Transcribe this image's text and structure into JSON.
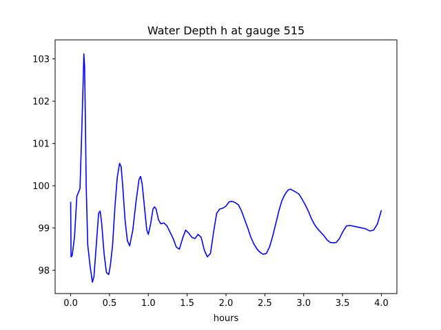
{
  "chart_data": {
    "type": "line",
    "title": "Water Depth h at gauge 515",
    "xlabel": "hours",
    "ylabel": "",
    "xlim": [
      -0.2,
      4.2
    ],
    "ylim": [
      97.45,
      103.45
    ],
    "grid": false,
    "x_ticks": [
      0.0,
      0.5,
      1.0,
      1.5,
      2.0,
      2.5,
      3.0,
      3.5,
      4.0
    ],
    "x_tick_labels": [
      "0.0",
      "0.5",
      "1.0",
      "1.5",
      "2.0",
      "2.5",
      "3.0",
      "3.5",
      "4.0"
    ],
    "y_ticks": [
      98,
      99,
      100,
      101,
      102,
      103
    ],
    "y_tick_labels": [
      "98",
      "99",
      "100",
      "101",
      "102",
      "103"
    ],
    "series": [
      {
        "color": "#0000ff",
        "x": [
          0.0,
          0.005,
          0.02,
          0.05,
          0.08,
          0.12,
          0.14,
          0.16,
          0.17,
          0.18,
          0.19,
          0.2,
          0.22,
          0.25,
          0.28,
          0.3,
          0.33,
          0.36,
          0.38,
          0.4,
          0.43,
          0.46,
          0.49,
          0.51,
          0.54,
          0.57,
          0.6,
          0.63,
          0.65,
          0.67,
          0.7,
          0.73,
          0.76,
          0.8,
          0.84,
          0.88,
          0.9,
          0.92,
          0.95,
          0.98,
          1.0,
          1.03,
          1.06,
          1.08,
          1.1,
          1.13,
          1.16,
          1.2,
          1.24,
          1.28,
          1.32,
          1.36,
          1.4,
          1.44,
          1.48,
          1.52,
          1.56,
          1.6,
          1.64,
          1.68,
          1.72,
          1.76,
          1.8,
          1.84,
          1.88,
          1.92,
          1.96,
          2.0,
          2.04,
          2.08,
          2.12,
          2.16,
          2.2,
          2.24,
          2.28,
          2.32,
          2.36,
          2.4,
          2.44,
          2.48,
          2.52,
          2.56,
          2.6,
          2.64,
          2.68,
          2.72,
          2.76,
          2.8,
          2.83,
          2.86,
          2.9,
          2.94,
          2.98,
          3.02,
          3.06,
          3.1,
          3.14,
          3.18,
          3.22,
          3.26,
          3.3,
          3.34,
          3.38,
          3.42,
          3.46,
          3.5,
          3.55,
          3.6,
          3.65,
          3.7,
          3.75,
          3.8,
          3.85,
          3.9,
          3.95,
          4.0
        ],
        "values": [
          99.62,
          98.32,
          98.35,
          98.8,
          99.75,
          99.93,
          101.1,
          102.4,
          103.12,
          102.8,
          101.5,
          100.0,
          98.6,
          98.1,
          97.72,
          97.85,
          98.6,
          99.35,
          99.4,
          99.1,
          98.4,
          97.95,
          97.9,
          98.1,
          98.6,
          99.5,
          100.2,
          100.53,
          100.45,
          100.0,
          99.2,
          98.7,
          98.58,
          98.95,
          99.6,
          100.15,
          100.22,
          100.05,
          99.5,
          98.95,
          98.85,
          99.1,
          99.45,
          99.5,
          99.45,
          99.2,
          99.1,
          99.12,
          99.05,
          98.9,
          98.75,
          98.55,
          98.5,
          98.75,
          98.95,
          98.88,
          98.78,
          98.75,
          98.85,
          98.78,
          98.48,
          98.32,
          98.4,
          98.9,
          99.35,
          99.45,
          99.47,
          99.52,
          99.62,
          99.63,
          99.6,
          99.55,
          99.4,
          99.2,
          99.0,
          98.78,
          98.62,
          98.5,
          98.42,
          98.38,
          98.4,
          98.55,
          98.8,
          99.1,
          99.4,
          99.65,
          99.8,
          99.9,
          99.92,
          99.89,
          99.85,
          99.8,
          99.68,
          99.55,
          99.4,
          99.22,
          99.08,
          98.98,
          98.9,
          98.82,
          98.72,
          98.66,
          98.65,
          98.66,
          98.75,
          98.9,
          99.05,
          99.06,
          99.04,
          99.02,
          99.0,
          98.98,
          98.93,
          98.95,
          99.1,
          99.42
        ]
      }
    ]
  }
}
